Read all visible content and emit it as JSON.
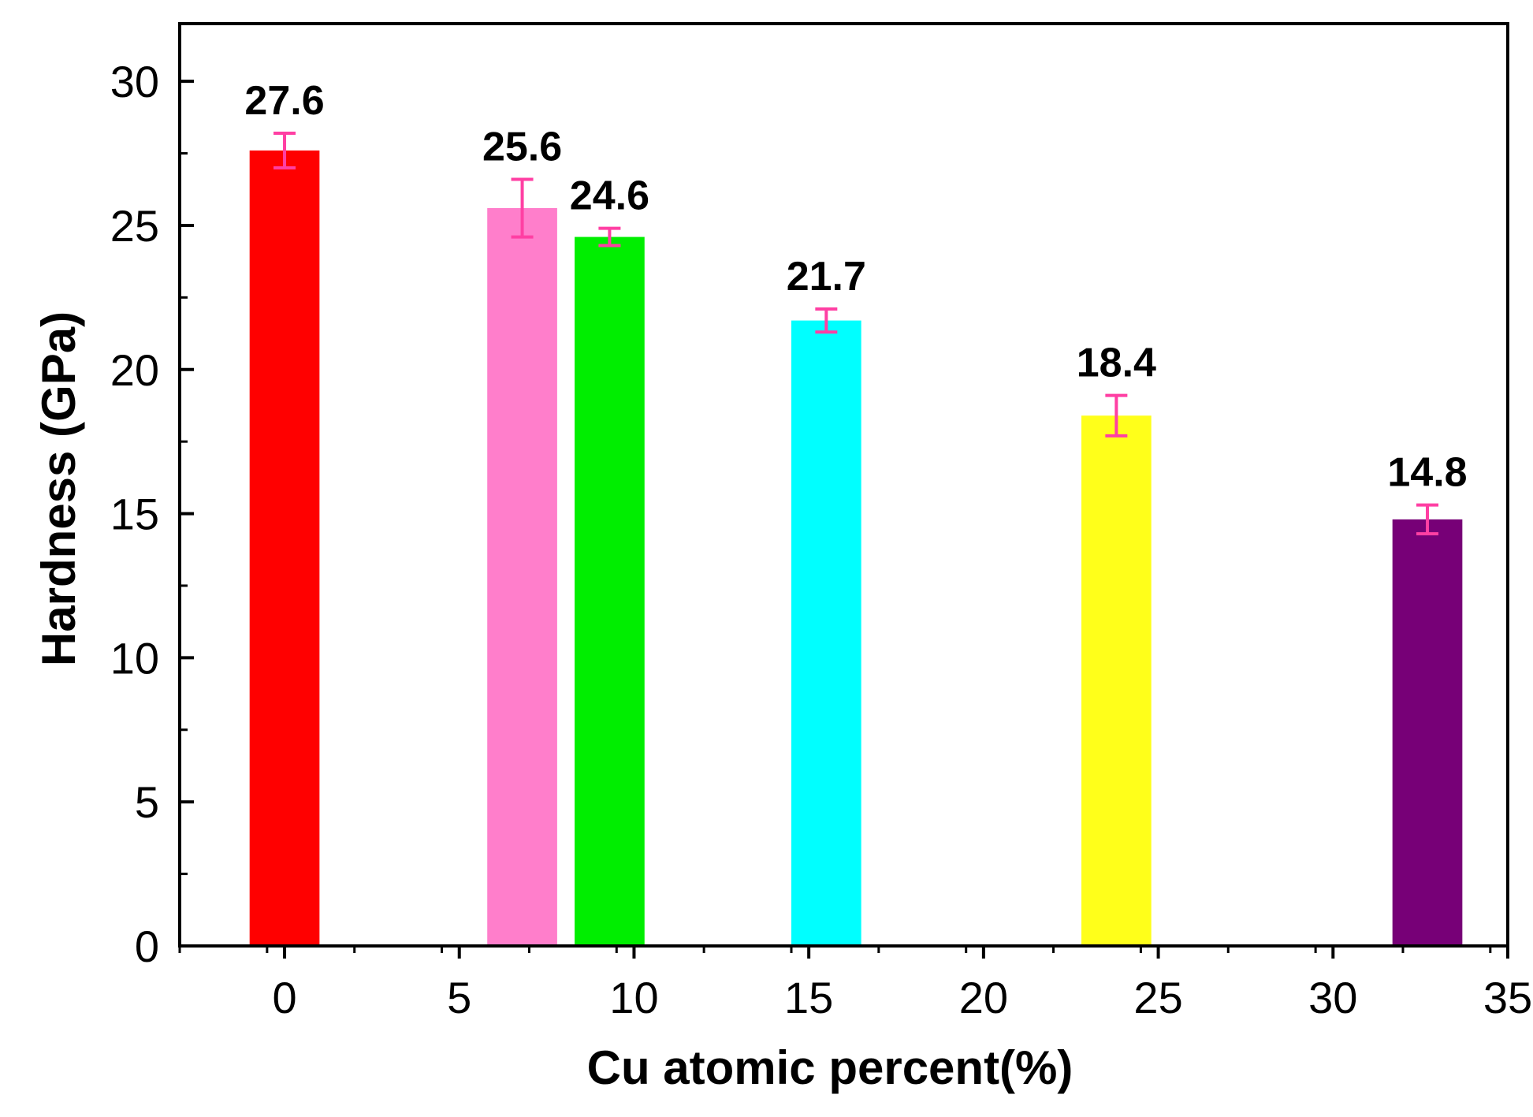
{
  "chart_data": {
    "type": "bar",
    "title": "",
    "xlabel": "Cu atomic percent(%)",
    "ylabel": "Hardness (GPa)",
    "xlim": [
      -3,
      35
    ],
    "ylim": [
      0,
      32
    ],
    "xticks": [
      0,
      5,
      10,
      15,
      20,
      25,
      30,
      35
    ],
    "yticks": [
      0,
      5,
      10,
      15,
      20,
      25,
      30
    ],
    "grid": false,
    "bar_width": 2,
    "bars": [
      {
        "x": 0,
        "value": 27.6,
        "error": 0.6,
        "label": "27.6",
        "color": "#ff0000"
      },
      {
        "x": 6.8,
        "value": 25.6,
        "error": 1.0,
        "label": "25.6",
        "color": "#ff7ecb"
      },
      {
        "x": 9.3,
        "value": 24.6,
        "error": 0.3,
        "label": "24.6",
        "color": "#00ee00"
      },
      {
        "x": 15.5,
        "value": 21.7,
        "error": 0.4,
        "label": "21.7",
        "color": "#00ffff"
      },
      {
        "x": 23.8,
        "value": 18.4,
        "error": 0.7,
        "label": "18.4",
        "color": "#ffff1a"
      },
      {
        "x": 32.7,
        "value": 14.8,
        "error": 0.5,
        "label": "14.8",
        "color": "#770077"
      }
    ],
    "error_bar_color": "#ff3fa3"
  }
}
